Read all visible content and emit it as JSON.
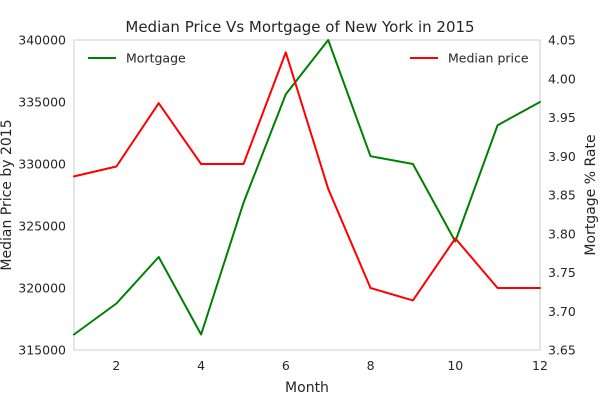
{
  "chart_data": {
    "type": "line",
    "title": "Median Price Vs Mortgage of New York in 2015",
    "xlabel": "Month",
    "ylabel_left": "Median Price by 2015",
    "ylabel_right": "Mortgage % Rate",
    "x": [
      1,
      2,
      3,
      4,
      5,
      6,
      7,
      8,
      9,
      10,
      11,
      12
    ],
    "x_ticks": [
      "2",
      "4",
      "6",
      "8",
      "10",
      "12"
    ],
    "xlim": [
      1,
      12
    ],
    "y_left_lim": [
      315000,
      340000
    ],
    "y_left_ticks": [
      "315000",
      "320000",
      "325000",
      "330000",
      "335000",
      "340000"
    ],
    "y_right_lim": [
      3.65,
      4.05
    ],
    "y_right_ticks": [
      "3.65",
      "3.70",
      "3.75",
      "3.80",
      "3.85",
      "3.90",
      "3.95",
      "4.00",
      "4.05"
    ],
    "grid": false,
    "series": [
      {
        "name": "Mortgage",
        "axis": "right",
        "color": "#008000",
        "legend_position": "upper-left",
        "values": [
          3.67,
          3.71,
          3.77,
          3.67,
          3.84,
          3.98,
          4.05,
          3.9,
          3.89,
          3.79,
          3.94,
          3.97
        ]
      },
      {
        "name": "Median price",
        "axis": "left",
        "color": "#ff0000",
        "legend_position": "upper-right",
        "values": [
          329000,
          329800,
          334900,
          330000,
          330000,
          339000,
          328000,
          320000,
          319000,
          324000,
          320000,
          320000
        ]
      }
    ]
  }
}
